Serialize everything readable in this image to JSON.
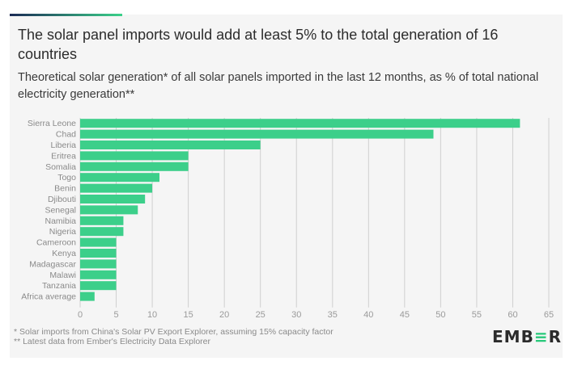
{
  "header": {
    "title": "The solar panel imports would add at least 5% to the total generation of 16 countries",
    "subtitle": "Theoretical solar generation* of all solar panels imported in the last 12 months, as % of total national electricity generation**"
  },
  "chart_data": {
    "type": "bar",
    "orientation": "horizontal",
    "title": "The solar panel imports would add at least 5% to the total generation of 16 countries",
    "subtitle": "Theoretical solar generation* of all solar panels imported in the last 12 months, as % of total national electricity generation**",
    "xlabel": "",
    "ylabel": "",
    "categories": [
      "Sierra Leone",
      "Chad",
      "Liberia",
      "Eritrea",
      "Somalia",
      "Togo",
      "Benin",
      "Djibouti",
      "Senegal",
      "Namibia",
      "Nigeria",
      "Cameroon",
      "Kenya",
      "Madagascar",
      "Malawi",
      "Tanzania",
      "Africa average"
    ],
    "values": [
      61,
      49,
      25,
      15,
      15,
      11,
      10,
      9,
      8,
      6,
      6,
      5,
      5,
      5,
      5,
      5,
      2
    ],
    "xlim": [
      0,
      65
    ],
    "xticks": [
      0,
      5,
      10,
      15,
      20,
      25,
      30,
      35,
      40,
      45,
      50,
      55,
      60,
      65
    ],
    "grid": true,
    "legend": "none",
    "bar_color": "#3ccf8a"
  },
  "footer": {
    "note1": "* Solar imports from China's Solar PV Export Explorer, assuming 15% capacity factor",
    "note2": "** Latest data from Ember's Electricity Data Explorer"
  },
  "logo": {
    "part1": "EMB",
    "part2": "≡",
    "part3": "R"
  },
  "colors": {
    "bar": "#3ccf8a",
    "grid": "#cfcfcf",
    "text": "#2c2c2c",
    "accent": "#27c97a"
  }
}
